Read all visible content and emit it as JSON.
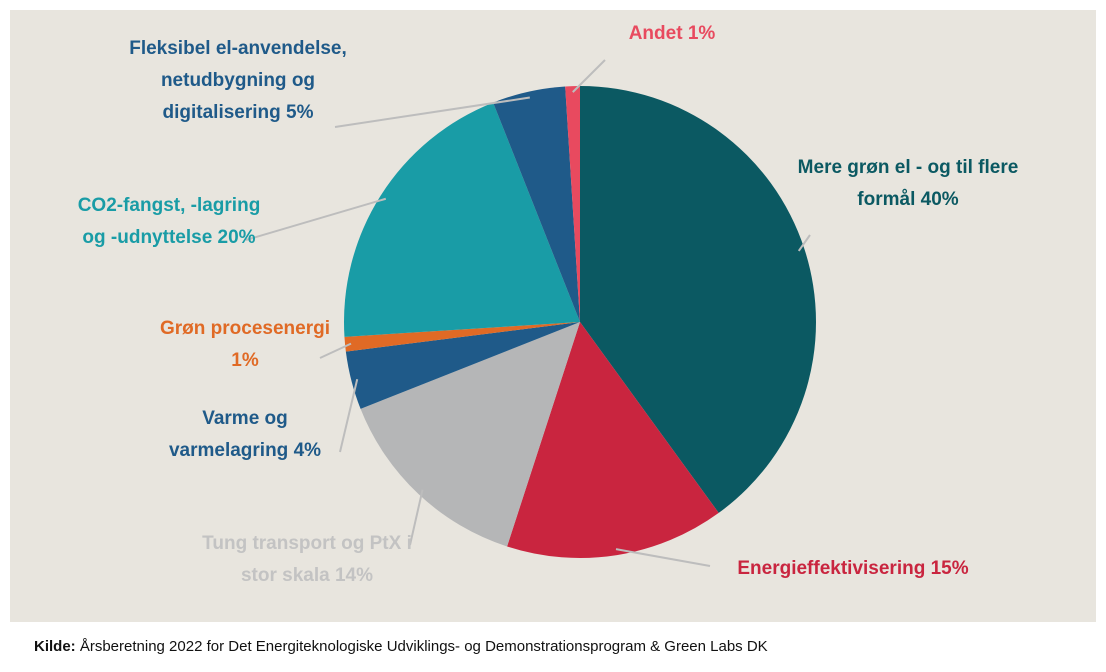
{
  "chart_data": {
    "type": "pie",
    "categories": [
      "Mere grøn el - og til flere formål",
      "Energieffektivisering",
      "Tung transport og PtX i stor skala",
      "Varme og varmelagring",
      "Grøn procesenergi",
      "CO2-fangst, -lagring og -udnyttelse",
      "Fleksibel el-anvendelse, netudbygning og digitalisering",
      "Andet"
    ],
    "values": [
      40,
      15,
      14,
      4,
      1,
      20,
      5,
      1
    ],
    "value_labels": [
      "40%",
      "15%",
      "14%",
      "4%",
      "1%",
      "20%",
      "5%",
      "1%"
    ],
    "colors": [
      "#0b5962",
      "#c9253f",
      "#b5b6b7",
      "#1f5a89",
      "#e06a25",
      "#199ca6",
      "#1f5a89",
      "#e84a5f"
    ],
    "label_colors": [
      "#0b5962",
      "#c9253f",
      "#c3c3c3",
      "#1f5a89",
      "#e06a25",
      "#199ca6",
      "#1f5a89",
      "#e84a5f"
    ]
  },
  "source": {
    "label": "Kilde:",
    "text": "Årsberetning 2022 for Det Energiteknologiske Udviklings- og Demonstrationsprogram & Green Labs DK"
  }
}
